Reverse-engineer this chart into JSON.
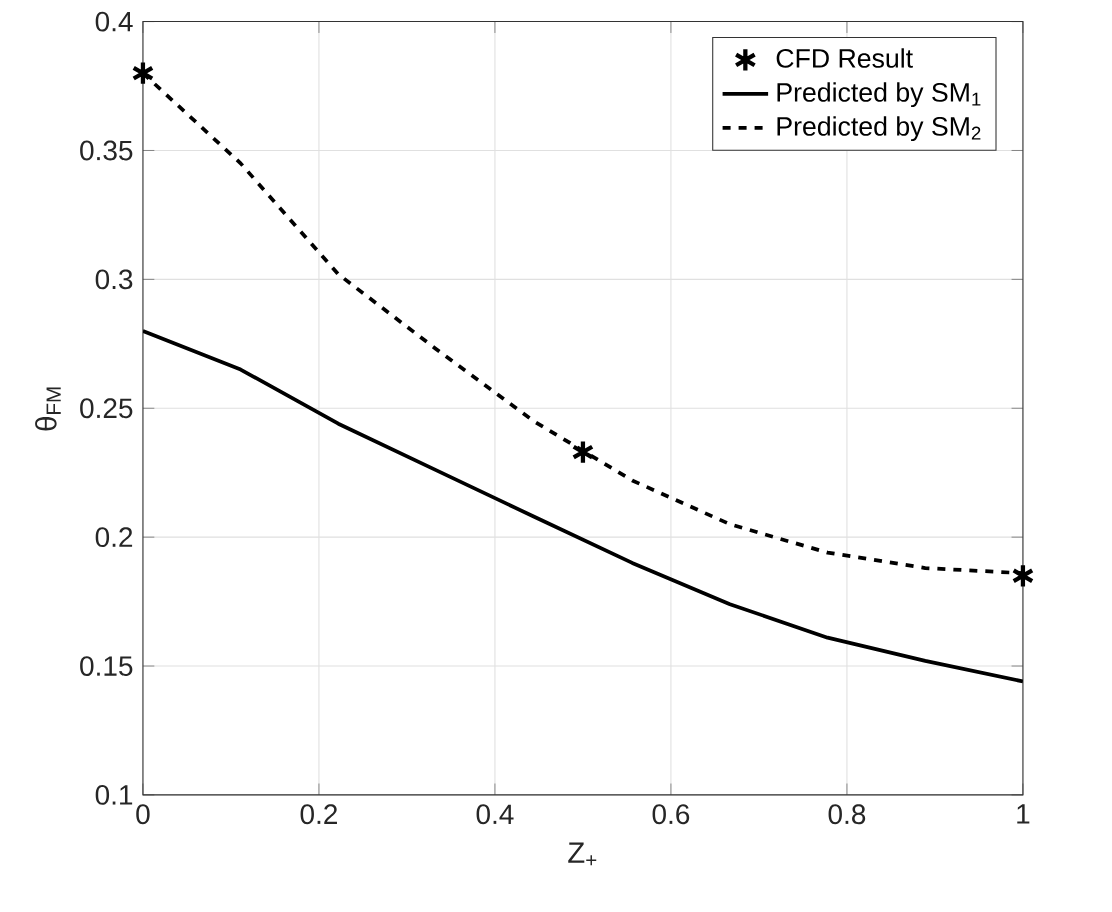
{
  "chart_data": {
    "type": "line",
    "xlabel": "Z$_{+}$",
    "ylabel": "θ$_{FM}$",
    "xlim": [
      0,
      1
    ],
    "ylim": [
      0.1,
      0.4
    ],
    "xticks": [
      0,
      0.2,
      0.4,
      0.6,
      0.8,
      1
    ],
    "yticks": [
      0.1,
      0.15,
      0.2,
      0.25,
      0.3,
      0.35,
      0.4
    ],
    "grid": true,
    "legend": "top right",
    "series": [
      {
        "name": "CFD Result",
        "type": "scatter",
        "marker": "cross",
        "color": "#000000",
        "x": [
          0,
          0.5,
          1
        ],
        "values": [
          0.38,
          0.233,
          0.185
        ]
      },
      {
        "name": "Predicted by SM$_{1}$",
        "line_style": "solid",
        "color": "#000000",
        "x": [
          0,
          0.111,
          0.222,
          0.333,
          0.444,
          0.556,
          0.667,
          0.778,
          0.889,
          1
        ],
        "values": [
          0.28,
          0.265,
          0.244,
          0.226,
          0.208,
          0.19,
          0.174,
          0.161,
          0.152,
          0.144
        ]
      },
      {
        "name": "Predicted by SM$_{2}$",
        "line_style": "dashed",
        "color": "#000000",
        "x": [
          0,
          0.111,
          0.222,
          0.333,
          0.444,
          0.556,
          0.667,
          0.778,
          0.889,
          1
        ],
        "values": [
          0.38,
          0.345,
          0.302,
          0.273,
          0.245,
          0.222,
          0.205,
          0.194,
          0.188,
          0.186
        ]
      }
    ]
  }
}
